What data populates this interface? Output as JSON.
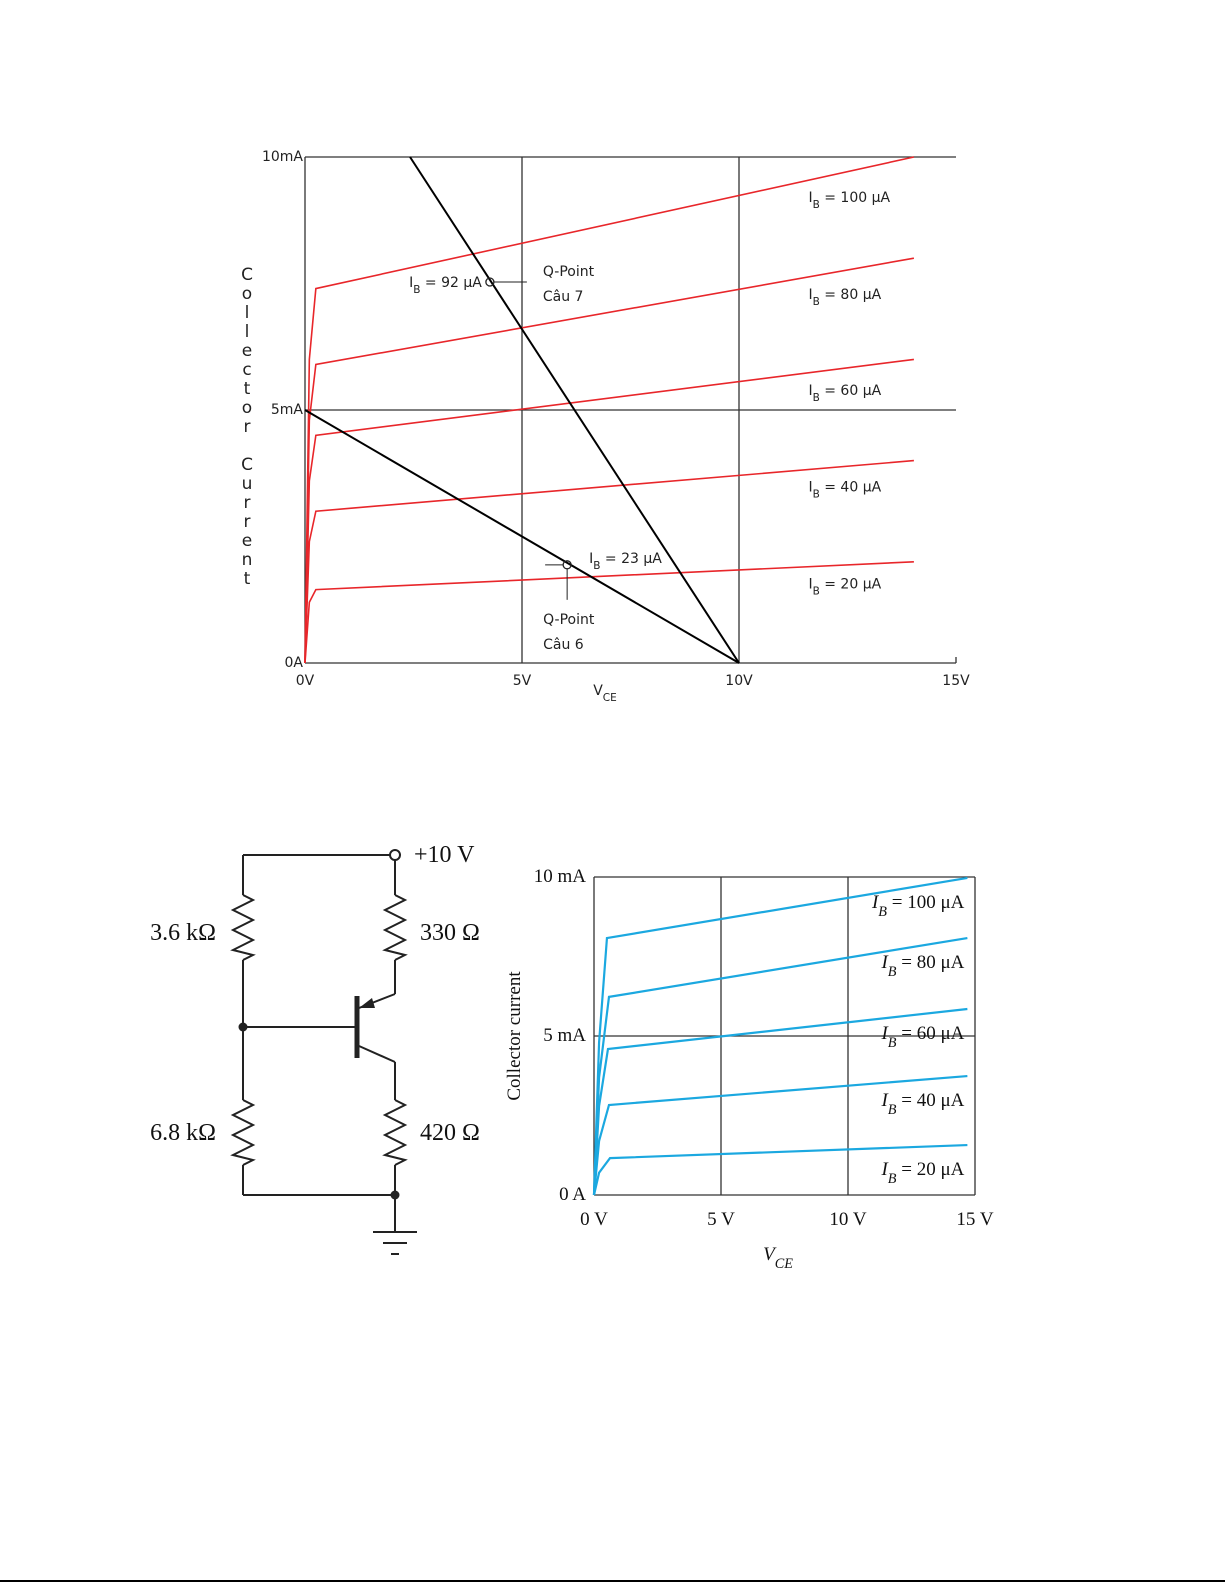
{
  "chart_data": [
    {
      "type": "line",
      "ylabel": "Collector Current",
      "xlabel": "VCE",
      "xlim": [
        0,
        15
      ],
      "xticks": [
        {
          "value": 0,
          "label": "0V"
        },
        {
          "value": 5,
          "label": "5V"
        },
        {
          "value": 10,
          "label": "10V"
        },
        {
          "value": 15,
          "label": "15V"
        }
      ],
      "ylim": [
        0,
        10
      ],
      "yticks": [
        {
          "value": 0,
          "label": "0A"
        },
        {
          "value": 5,
          "label": "5mA"
        },
        {
          "value": 10,
          "label": "10mA"
        }
      ],
      "grid": true,
      "series": [
        {
          "name": "IB = 100 μA",
          "color": "#e8262a",
          "x": [
            0,
            0.1,
            0.25,
            14.03
          ],
          "values": [
            0,
            6,
            7.4,
            10
          ]
        },
        {
          "name": "IB = 80 μA",
          "color": "#e8262a",
          "x": [
            0,
            0.1,
            0.25,
            14.03
          ],
          "values": [
            0,
            4.8,
            5.9,
            8
          ]
        },
        {
          "name": "IB = 60 μA",
          "color": "#e8262a",
          "x": [
            0,
            0.1,
            0.25,
            14.03
          ],
          "values": [
            0,
            3.6,
            4.5,
            6
          ]
        },
        {
          "name": "IB = 40 μA",
          "color": "#e8262a",
          "x": [
            0,
            0.1,
            0.25,
            14.03
          ],
          "values": [
            0,
            2.4,
            3,
            4
          ]
        },
        {
          "name": "IB = 20 μA",
          "color": "#e8262a",
          "x": [
            0,
            0.1,
            0.25,
            14.03
          ],
          "values": [
            0,
            1.2,
            1.45,
            2
          ]
        }
      ],
      "load_lines": {
        "color": "#000000",
        "lines": [
          {
            "x": [
              0,
              10
            ],
            "values": [
              5,
              0
            ]
          },
          {
            "x": [
              2.42,
              10
            ],
            "values": [
              10,
              0
            ]
          }
        ]
      },
      "q_points": [
        {
          "x": 4.26,
          "y": 7.53,
          "label": "IB = 92 μA",
          "name": "Q-Point",
          "note": "Câu 7"
        },
        {
          "x": 6.04,
          "y": 1.94,
          "label": "IB = 23 μA",
          "name": "Q-Point",
          "note": "Câu 6"
        }
      ]
    },
    {
      "type": "line",
      "ylabel": "Collector current",
      "xlabel": "VCE",
      "xlim": [
        0,
        15
      ],
      "xticks": [
        {
          "value": 0,
          "label": "0 V"
        },
        {
          "value": 5,
          "label": "5 V"
        },
        {
          "value": 10,
          "label": "10 V"
        },
        {
          "value": 15,
          "label": "15 V"
        }
      ],
      "ylim": [
        0,
        10
      ],
      "yticks": [
        {
          "value": 0,
          "label": "0 A"
        },
        {
          "value": 5,
          "label": "5 mA"
        },
        {
          "value": 10,
          "label": "10 mA"
        }
      ],
      "grid": true,
      "series": [
        {
          "name": "IB = 100 μA",
          "color": "#1ba8e0",
          "x": [
            0,
            0.2,
            0.51,
            14.7
          ],
          "values": [
            0,
            4.8,
            8.08,
            9.97
          ]
        },
        {
          "name": "IB = 80 μA",
          "color": "#1ba8e0",
          "x": [
            0,
            0.2,
            0.59,
            14.7
          ],
          "values": [
            0,
            3.7,
            6.23,
            8.08
          ]
        },
        {
          "name": "IB = 60 μA",
          "color": "#1ba8e0",
          "x": [
            0,
            0.2,
            0.55,
            14.7
          ],
          "values": [
            0,
            2.8,
            4.59,
            5.85
          ]
        },
        {
          "name": "IB = 40 μA",
          "color": "#1ba8e0",
          "x": [
            0,
            0.2,
            0.59,
            14.7
          ],
          "values": [
            0,
            1.7,
            2.83,
            3.74
          ]
        },
        {
          "name": "IB = 20 μA",
          "color": "#1ba8e0",
          "x": [
            0,
            0.2,
            0.63,
            14.7
          ],
          "values": [
            0,
            0.7,
            1.16,
            1.57
          ]
        }
      ]
    }
  ],
  "circuit": {
    "supply": "+10 V",
    "resistors": [
      "3.6 kΩ",
      "330 Ω",
      "6.8 kΩ",
      "420 Ω"
    ]
  }
}
